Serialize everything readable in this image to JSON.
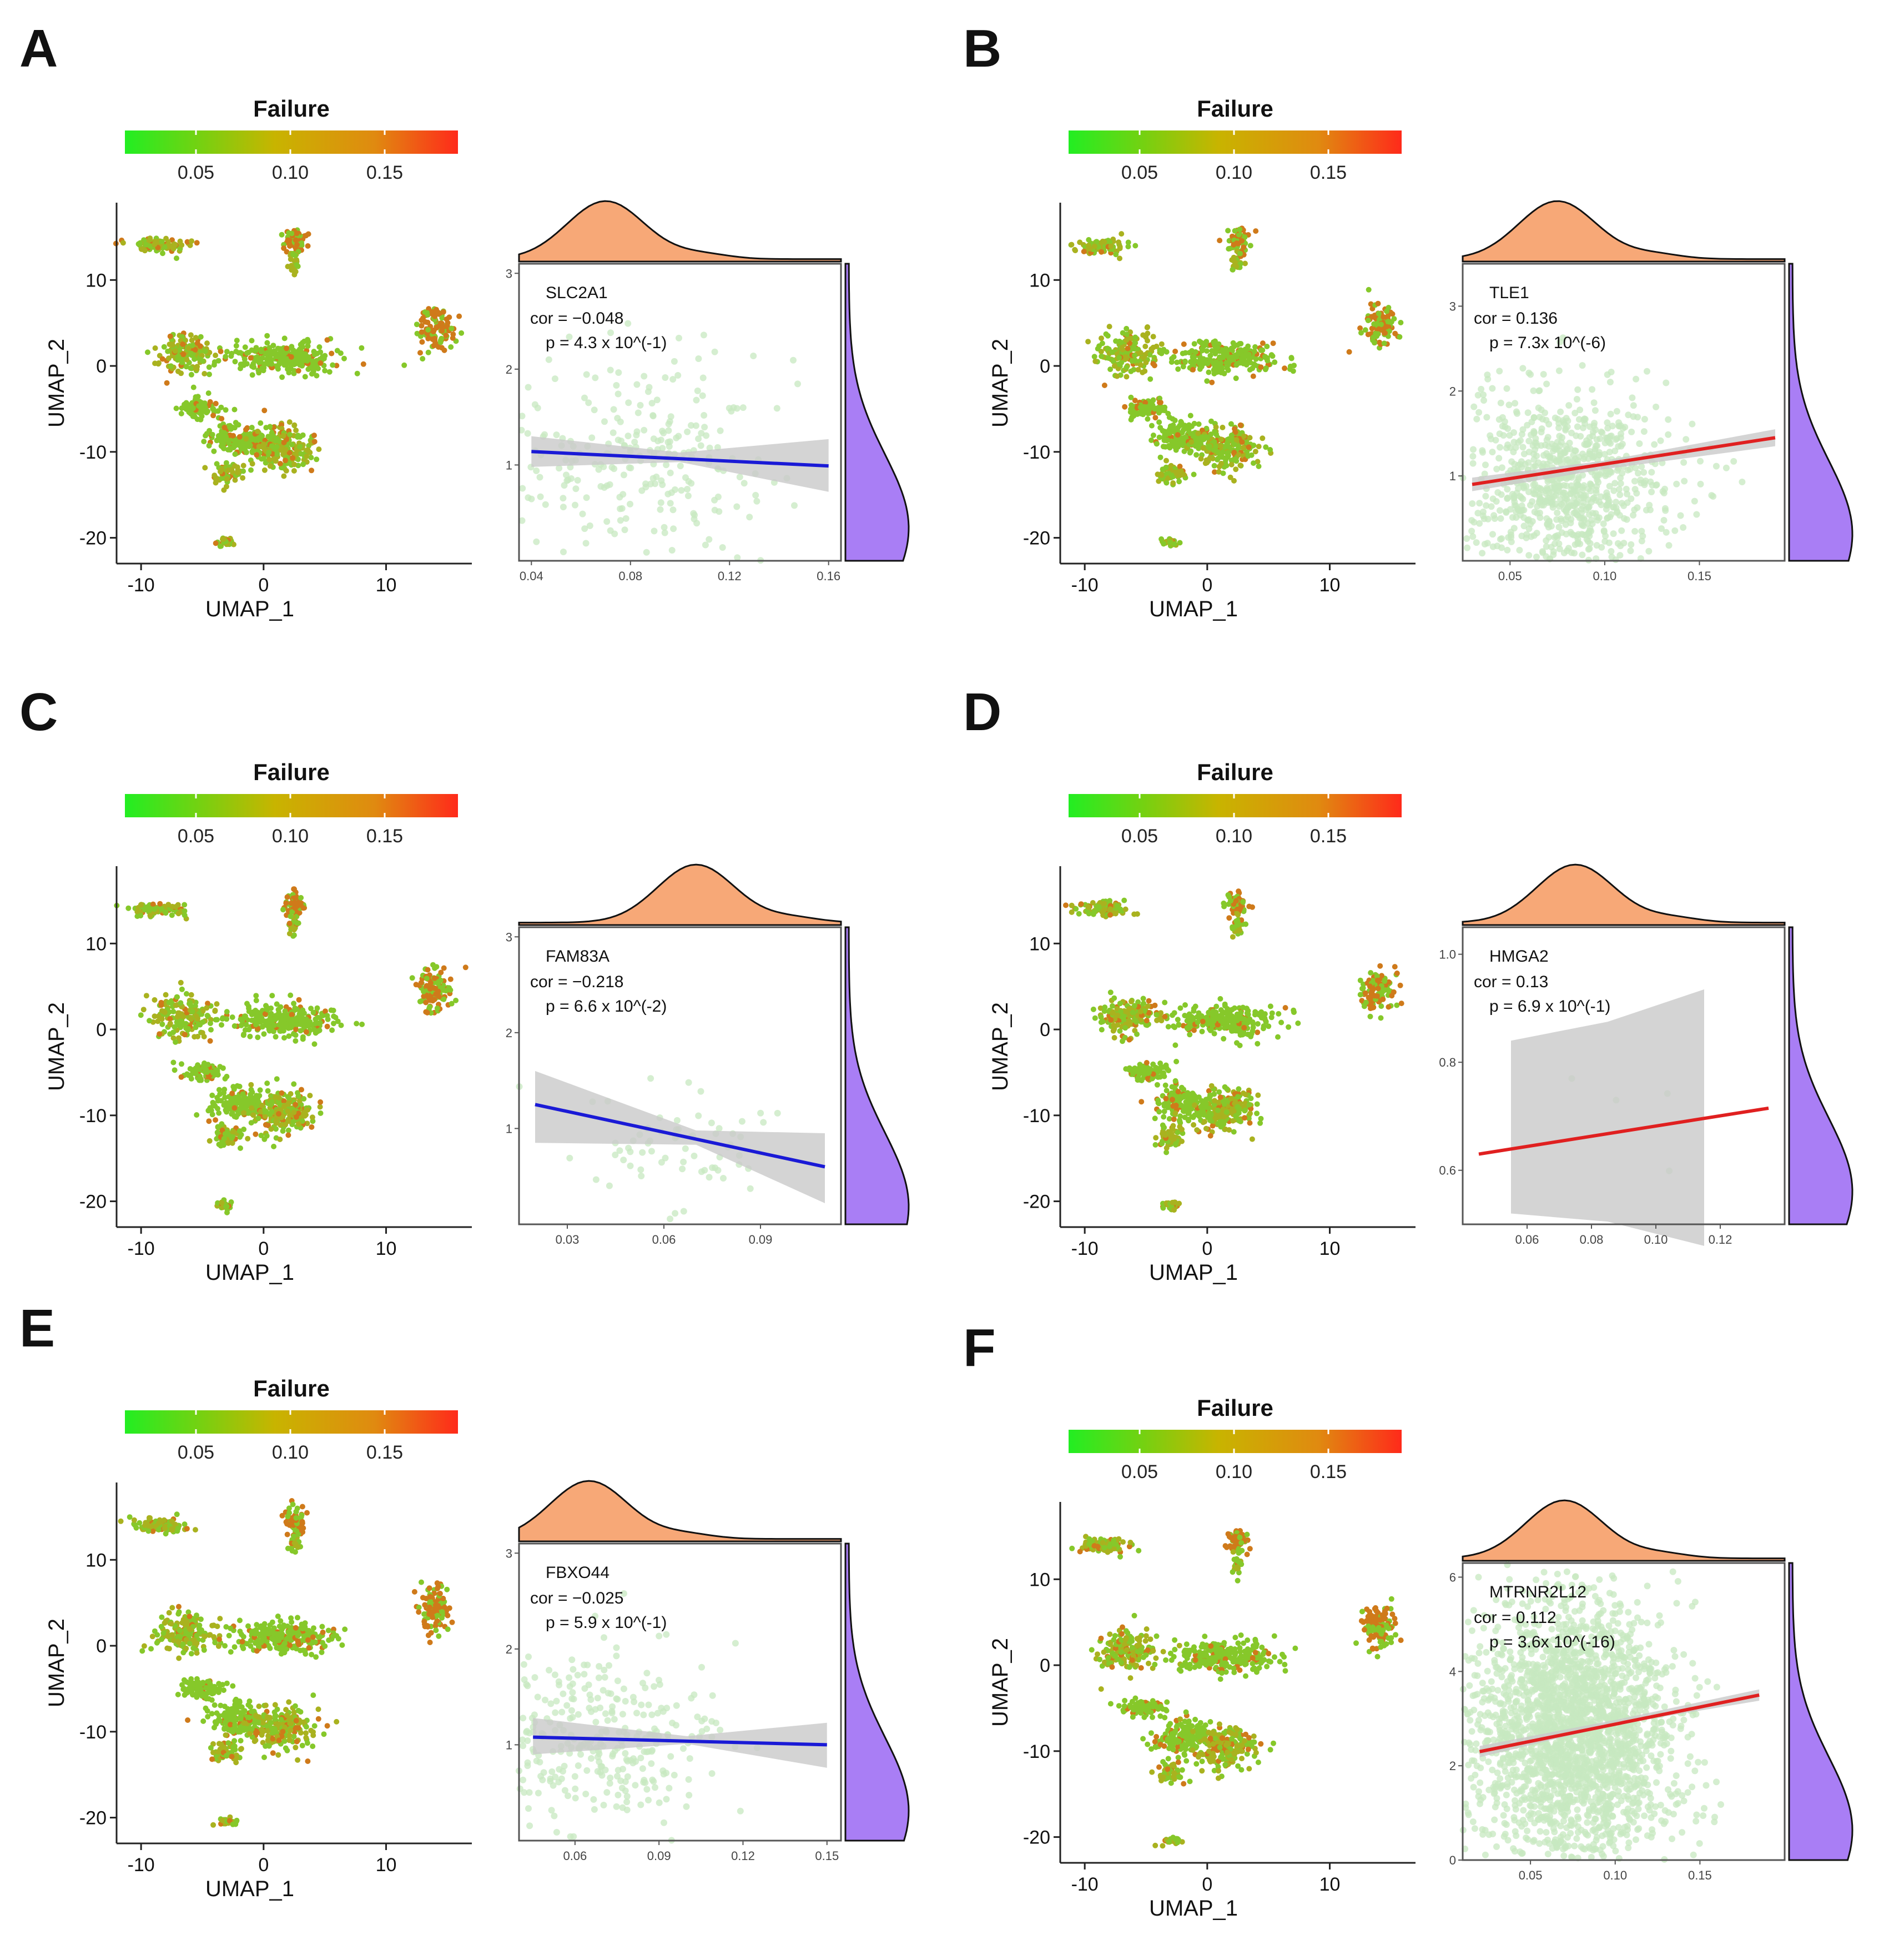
{
  "colors": {
    "gradient_low": "#22ee22",
    "gradient_mid": "#c8b400",
    "gradient_midhigh": "#e08a10",
    "gradient_high": "#ff2a1a",
    "umap_green": "#86c82a",
    "umap_olive": "#a9b21f",
    "umap_orange": "#cf7a1a",
    "density_top": "#f7a877",
    "density_right": "#a97ef5",
    "line_negative": "#1a1ad6",
    "line_positive": "#e02020",
    "ci_band": "#c9c9c9",
    "scatter_point": "#c7e8c0",
    "axis": "#222222"
  },
  "chart_data": [
    {
      "panel": "A",
      "legend_title": "Failure",
      "legend_ticks": [
        "0.05",
        "0.10",
        "0.15"
      ],
      "umap": {
        "type": "scatter",
        "xlabel": "UMAP_1",
        "ylabel": "UMAP_2",
        "xticks": [
          "-10",
          "0",
          "10"
        ],
        "yticks": [
          "10",
          "0",
          "-10",
          "-20"
        ],
        "xlim": [
          -12,
          17
        ],
        "ylim": [
          -23,
          19
        ]
      },
      "correlation": {
        "type": "scatter",
        "gene": "SLC2A1",
        "cor_text": "cor = −0.048",
        "p_text": "p = 4.3 x 10^(-1)",
        "trend": "negative",
        "xlim": [
          0.035,
          0.165
        ],
        "ylim": [
          0,
          3.1
        ],
        "xticks": [
          "0.04",
          "0.08",
          "0.12",
          "0.16"
        ],
        "yticks": [
          "1",
          "2",
          "3"
        ],
        "fit": {
          "x": [
            0.04,
            0.16
          ],
          "y": [
            1.14,
            0.99
          ]
        },
        "ci": {
          "x": [
            0.04,
            0.1,
            0.16
          ],
          "upper": [
            1.3,
            1.13,
            1.27
          ],
          "lower": [
            0.98,
            1.03,
            0.72
          ]
        },
        "n_points": 260,
        "x_center": 0.085,
        "x_spread": 0.03,
        "y_center": 1.1,
        "y_spread": 0.55,
        "marginal_x_peak": 0.07,
        "marginal_y_peak": 0.55
      }
    },
    {
      "panel": "B",
      "legend_title": "Failure",
      "legend_ticks": [
        "0.05",
        "0.10",
        "0.15"
      ],
      "umap": {
        "type": "scatter",
        "xlabel": "UMAP_1",
        "ylabel": "UMAP_2",
        "xticks": [
          "-10",
          "0",
          "10"
        ],
        "yticks": [
          "10",
          "0",
          "-10",
          "-20"
        ],
        "xlim": [
          -12,
          17
        ],
        "ylim": [
          -23,
          19
        ]
      },
      "correlation": {
        "type": "scatter",
        "gene": "TLE1",
        "cor_text": "cor = 0.136",
        "p_text": "p = 7.3x 10^(-6)",
        "trend": "positive",
        "xlim": [
          0.025,
          0.195
        ],
        "ylim": [
          0,
          3.5
        ],
        "xticks": [
          "0.05",
          "0.10",
          "0.15"
        ],
        "yticks": [
          "1",
          "2",
          "3"
        ],
        "fit": {
          "x": [
            0.03,
            0.19
          ],
          "y": [
            0.9,
            1.45
          ]
        },
        "ci": {
          "x": [
            0.03,
            0.1,
            0.19
          ],
          "upper": [
            0.98,
            1.18,
            1.55
          ],
          "lower": [
            0.82,
            1.08,
            1.35
          ]
        },
        "n_points": 900,
        "x_center": 0.08,
        "x_spread": 0.028,
        "y_center": 0.9,
        "y_spread": 0.55,
        "marginal_x_peak": 0.075,
        "marginal_y_peak": 0.45
      }
    },
    {
      "panel": "C",
      "legend_title": "Failure",
      "legend_ticks": [
        "0.05",
        "0.10",
        "0.15"
      ],
      "umap": {
        "type": "scatter",
        "xlabel": "UMAP_1",
        "ylabel": "UMAP_2",
        "xticks": [
          "-10",
          "0",
          "10"
        ],
        "yticks": [
          "10",
          "0",
          "-10",
          "-20"
        ],
        "xlim": [
          -12,
          17
        ],
        "ylim": [
          -23,
          19
        ]
      },
      "correlation": {
        "type": "scatter",
        "gene": "FAM83A",
        "cor_text": "cor = −0.218",
        "p_text": "p = 6.6 x 10^(-2)",
        "trend": "negative",
        "xlim": [
          0.015,
          0.115
        ],
        "ylim": [
          0,
          3.1
        ],
        "xticks": [
          "0.03",
          "0.06",
          "0.09"
        ],
        "yticks": [
          "1",
          "2",
          "3"
        ],
        "fit": {
          "x": [
            0.02,
            0.11
          ],
          "y": [
            1.25,
            0.6
          ]
        },
        "ci": {
          "x": [
            0.02,
            0.07,
            0.11
          ],
          "upper": [
            1.6,
            0.98,
            0.95
          ],
          "lower": [
            0.85,
            0.83,
            0.22
          ]
        },
        "n_points": 70,
        "x_center": 0.065,
        "x_spread": 0.015,
        "y_center": 0.85,
        "y_spread": 0.4,
        "marginal_x_peak": 0.07,
        "marginal_y_peak": 0.3
      }
    },
    {
      "panel": "D",
      "legend_title": "Failure",
      "legend_ticks": [
        "0.05",
        "0.10",
        "0.15"
      ],
      "umap": {
        "type": "scatter",
        "xlabel": "UMAP_1",
        "ylabel": "UMAP_2",
        "xticks": [
          "-10",
          "0",
          "10"
        ],
        "yticks": [
          "10",
          "0",
          "-10",
          "-20"
        ],
        "xlim": [
          -12,
          17
        ],
        "ylim": [
          -23,
          19
        ]
      },
      "correlation": {
        "type": "scatter",
        "gene": "HMGA2",
        "cor_text": "cor = 0.13",
        "p_text": "p = 6.9 x 10^(-1)",
        "trend": "positive",
        "xlim": [
          0.04,
          0.14
        ],
        "ylim": [
          0.5,
          1.05
        ],
        "xticks": [
          "0.06",
          "0.08",
          "0.10",
          "0.12"
        ],
        "yticks": [
          "0.6",
          "0.8",
          "1.0"
        ],
        "fit": {
          "x": [
            0.045,
            0.135
          ],
          "y": [
            0.63,
            0.715
          ]
        },
        "ci": {
          "x": [
            0.055,
            0.085,
            0.115
          ],
          "upper": [
            0.84,
            0.875,
            0.935
          ],
          "lower": [
            0.52,
            0.505,
            0.46
          ]
        },
        "n_points": 5,
        "x_center": 0.08,
        "x_spread": 0.02,
        "y_center": 0.65,
        "y_spread": 0.1,
        "marginal_x_peak": 0.075,
        "marginal_y_peak": 0.55
      }
    },
    {
      "panel": "E",
      "legend_title": "Failure",
      "legend_ticks": [
        "0.05",
        "0.10",
        "0.15"
      ],
      "umap": {
        "type": "scatter",
        "xlabel": "UMAP_1",
        "ylabel": "UMAP_2",
        "xticks": [
          "-10",
          "0",
          "10"
        ],
        "yticks": [
          "10",
          "0",
          "-10",
          "-20"
        ],
        "xlim": [
          -12,
          17
        ],
        "ylim": [
          -23,
          19
        ]
      },
      "correlation": {
        "type": "scatter",
        "gene": "FBXO44",
        "cor_text": "cor = −0.025",
        "p_text": "p = 5.9 x 10^(-1)",
        "trend": "negative",
        "xlim": [
          0.04,
          0.155
        ],
        "ylim": [
          0,
          3.1
        ],
        "xticks": [
          "0.06",
          "0.09",
          "0.12",
          "0.15"
        ],
        "yticks": [
          "1",
          "2",
          "3"
        ],
        "fit": {
          "x": [
            0.045,
            0.15
          ],
          "y": [
            1.08,
            1.0
          ]
        },
        "ci": {
          "x": [
            0.045,
            0.1,
            0.15
          ],
          "upper": [
            1.28,
            1.09,
            1.23
          ],
          "lower": [
            0.9,
            1.01,
            0.76
          ]
        },
        "n_points": 330,
        "x_center": 0.07,
        "x_spread": 0.022,
        "y_center": 1.0,
        "y_spread": 0.5,
        "marginal_x_peak": 0.065,
        "marginal_y_peak": 0.5
      }
    },
    {
      "panel": "F",
      "legend_title": "Failure",
      "legend_ticks": [
        "0.05",
        "0.10",
        "0.15"
      ],
      "umap": {
        "type": "scatter",
        "xlabel": "UMAP_1",
        "ylabel": "UMAP_2",
        "xticks": [
          "-10",
          "0",
          "10"
        ],
        "yticks": [
          "10",
          "0",
          "-10",
          "-20"
        ],
        "xlim": [
          -12,
          17
        ],
        "ylim": [
          -23,
          19
        ]
      },
      "correlation": {
        "type": "scatter",
        "gene": "MTRNR2L12",
        "cor_text": "cor = 0.112",
        "p_text": "p = 3.6x 10^(-16)",
        "trend": "positive",
        "xlim": [
          0.01,
          0.2
        ],
        "ylim": [
          0,
          6.3
        ],
        "xticks": [
          "0.05",
          "0.10",
          "0.15"
        ],
        "yticks": [
          "0",
          "2",
          "4",
          "6"
        ],
        "fit": {
          "x": [
            0.02,
            0.185
          ],
          "y": [
            2.3,
            3.5
          ]
        },
        "ci": {
          "x": [
            0.02,
            0.1,
            0.185
          ],
          "upper": [
            2.42,
            2.97,
            3.62
          ],
          "lower": [
            2.18,
            2.87,
            3.38
          ]
        },
        "n_points": 2400,
        "x_center": 0.075,
        "x_spread": 0.03,
        "y_center": 2.7,
        "y_spread": 1.4,
        "marginal_x_peak": 0.07,
        "marginal_y_peak": 0.5
      }
    }
  ]
}
